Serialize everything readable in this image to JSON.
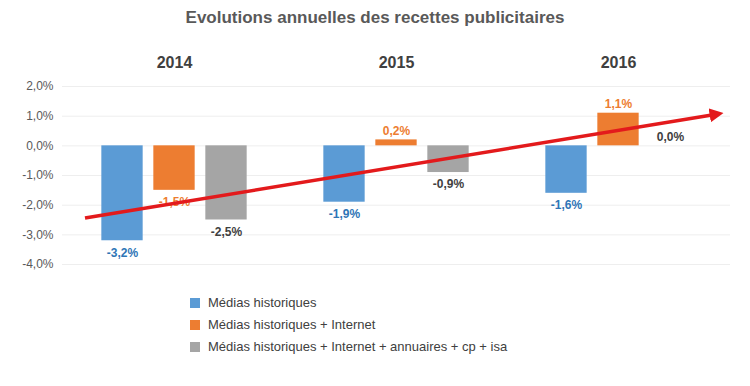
{
  "chart_data": {
    "type": "bar",
    "title": "Evolutions annuelles des recettes publicitaires",
    "categories": [
      "2014",
      "2015",
      "2016"
    ],
    "series": [
      {
        "name": "Médias historiques",
        "color": "#5b9bd5",
        "values": [
          -3.2,
          -1.9,
          -1.6
        ],
        "value_labels": [
          "-3,2%",
          "-1,9%",
          "-1,6%"
        ]
      },
      {
        "name": "Médias historiques + Internet",
        "color": "#ed7d31",
        "values": [
          -1.5,
          0.2,
          1.1
        ],
        "value_labels": [
          "-1,5%",
          "0,2%",
          "1,1%"
        ]
      },
      {
        "name": "Médias historiques + Internet + annuaires + cp + isa",
        "color": "#a5a5a5",
        "values": [
          -2.5,
          -0.9,
          0.0
        ],
        "value_labels": [
          "-2,5%",
          "-0,9%",
          "0,0%"
        ]
      }
    ],
    "ylim": [
      -4,
      2
    ],
    "yticks": [
      {
        "value": -4,
        "label": "-4,0%"
      },
      {
        "value": -3,
        "label": "-3,0%"
      },
      {
        "value": -2,
        "label": "-2,0%"
      },
      {
        "value": -1,
        "label": "-1,0%"
      },
      {
        "value": 0,
        "label": "0,0%"
      },
      {
        "value": 1,
        "label": "1,0%"
      },
      {
        "value": 2,
        "label": "2,0%"
      }
    ],
    "grid": true,
    "data_labels": true,
    "legend": "bottom"
  }
}
